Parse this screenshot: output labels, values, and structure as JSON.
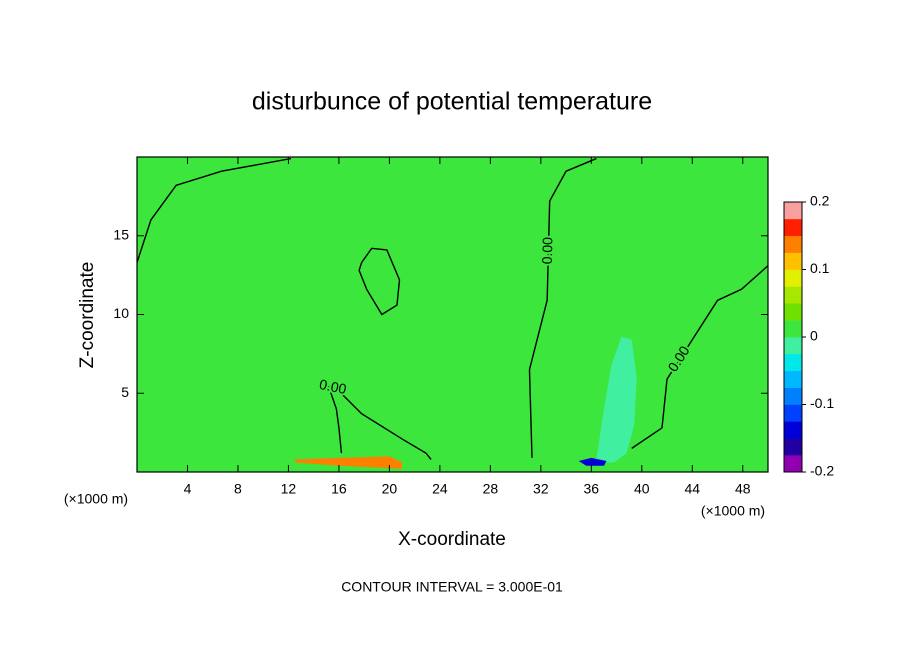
{
  "chart_data": {
    "type": "contour",
    "title": "disturbunce of potential temperature",
    "xlabel": "X-coordinate",
    "ylabel": "Z-coordinate",
    "x_unit_left": "(×1000 m)",
    "x_unit_right": "(×1000 m)",
    "footer": "CONTOUR INTERVAL = 3.000E-01",
    "xlim": [
      0,
      50
    ],
    "ylim": [
      0,
      20
    ],
    "xticks": [
      4,
      8,
      12,
      16,
      20,
      24,
      28,
      32,
      36,
      40,
      44,
      48
    ],
    "yticks": [
      5,
      10,
      15
    ],
    "clim": [
      -0.2,
      0.2
    ],
    "cticks": [
      -0.2,
      -0.1,
      0,
      0.1,
      0.2
    ],
    "colors": [
      "#9000b0",
      "#2000a0",
      "#0000d8",
      "#0040ff",
      "#0080ff",
      "#00b8ff",
      "#00e8e8",
      "#40f0a0",
      "#3ce63c",
      "#70e000",
      "#a8e800",
      "#e0f000",
      "#ffc000",
      "#ff8000",
      "#ff2000",
      "#f8a0a0"
    ],
    "background_value": 0,
    "regions": [
      {
        "value": -0.01,
        "x": [
          36.4,
          37.0,
          37.6,
          38.4,
          39.2,
          39.6,
          39.4,
          38.8,
          37.8,
          36.6,
          35.8
        ],
        "z": [
          0.8,
          4.0,
          6.8,
          8.6,
          8.4,
          6.0,
          3.0,
          1.2,
          0.6,
          0.6,
          0.7
        ]
      },
      {
        "value": 0.14,
        "x": [
          12.5,
          16.0,
          20.0,
          21.0,
          21.0,
          16.0,
          12.5
        ],
        "z": [
          0.8,
          0.9,
          1.0,
          0.6,
          0.2,
          0.4,
          0.6
        ]
      },
      {
        "value": -0.15,
        "x": [
          35.0,
          36.0,
          37.2,
          37.0,
          35.6
        ],
        "z": [
          0.7,
          0.9,
          0.7,
          0.4,
          0.4
        ]
      }
    ],
    "contours": [
      {
        "x": [
          0.0,
          1.1,
          3.1,
          6.7,
          12.2
        ],
        "z": [
          13.3,
          16.0,
          18.2,
          19.1,
          19.9
        ]
      },
      {
        "x": [
          17.8,
          18.6,
          19.8,
          20.8,
          20.6,
          19.4,
          18.2,
          17.6,
          17.8
        ],
        "z": [
          13.3,
          14.2,
          14.1,
          12.2,
          10.6,
          10.0,
          11.6,
          12.8,
          13.3
        ]
      },
      {
        "label": "0.00",
        "x": [
          16.2,
          16.0,
          15.8,
          15.2,
          15.8,
          17.8,
          21.0,
          22.9,
          23.3
        ],
        "z": [
          1.2,
          2.8,
          4.0,
          5.4,
          5.3,
          3.7,
          2.1,
          1.2,
          0.8
        ]
      },
      {
        "label": "0.00",
        "x": [
          31.3,
          31.1,
          32.5,
          32.7,
          34.0,
          36.4
        ],
        "z": [
          0.9,
          6.5,
          10.9,
          17.2,
          19.1,
          19.9
        ]
      },
      {
        "label": "0.00",
        "x": [
          39.2,
          41.6,
          42.0,
          44.0,
          46.0,
          47.9,
          50.0
        ],
        "z": [
          1.5,
          2.8,
          5.9,
          8.4,
          10.9,
          11.6,
          13.1
        ]
      }
    ]
  }
}
